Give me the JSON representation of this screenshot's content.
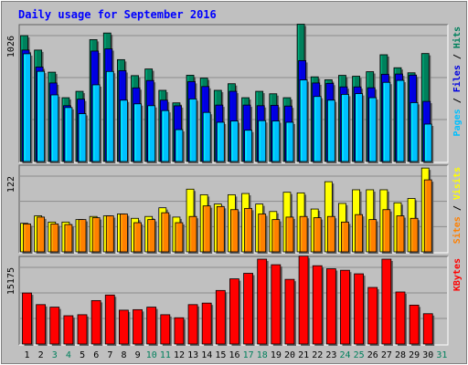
{
  "chart_data": {
    "type": "bar",
    "title": "Daily usage for September 2016",
    "days": [
      "1",
      "2",
      "3",
      "4",
      "5",
      "6",
      "7",
      "8",
      "9",
      "10",
      "11",
      "12",
      "13",
      "14",
      "15",
      "16",
      "17",
      "18",
      "19",
      "20",
      "21",
      "22",
      "23",
      "24",
      "25",
      "26",
      "27",
      "28",
      "29",
      "30",
      "31"
    ],
    "weekend_days": [
      "3",
      "4",
      "10",
      "11",
      "17",
      "18",
      "24",
      "25",
      "31"
    ],
    "panels": [
      {
        "name": "pages-files-hits",
        "tick_label": "1026",
        "ymax": 1026,
        "right_labels": [
          {
            "text": "Pages",
            "color": "#00c0ff"
          },
          {
            "text": " / ",
            "color": "#000000"
          },
          {
            "text": "Files",
            "color": "#0000e0"
          },
          {
            "text": " / ",
            "color": "#000000"
          },
          {
            "text": "Hits",
            "color": "#00805c"
          }
        ],
        "series": [
          {
            "name": "Hits",
            "color": "#00805c",
            "values": [
              1026,
              908,
              728,
              520,
              572,
              993,
              1047,
              830,
              700,
              754,
              580,
              478,
              703,
              680,
              580,
              634,
              520,
              572,
              552,
              520,
              1119,
              690,
              666,
              702,
              695,
              732,
              870,
              764,
              723,
              880,
              null
            ]
          },
          {
            "name": "Files",
            "color": "#0000e0",
            "values": [
              908,
              770,
              640,
              455,
              508,
              900,
              918,
              740,
              600,
              660,
              500,
              454,
              651,
              611,
              460,
              572,
              460,
              455,
              458,
              452,
              822,
              640,
              637,
              608,
              608,
              601,
              711,
              713,
              704,
              490,
              null
            ]
          },
          {
            "name": "Pages",
            "color": "#00c0ff",
            "values": [
              878,
              735,
              543,
              440,
              390,
              625,
              734,
              500,
              470,
              455,
              415,
              260,
              510,
              400,
              320,
              330,
              255,
              333,
              330,
              320,
              665,
              530,
              500,
              547,
              553,
              520,
              645,
              661,
              480,
              305,
              null
            ]
          }
        ]
      },
      {
        "name": "visits-sites",
        "tick_label": "122",
        "ymax": 122,
        "right_labels": [
          {
            "text": "Sites",
            "color": "#ff8000"
          },
          {
            "text": " / ",
            "color": "#000000"
          },
          {
            "text": "Visits",
            "color": "#ffff00"
          }
        ],
        "series": [
          {
            "name": "Visits",
            "color": "#ffff00",
            "values": [
              46,
              58,
              48,
              48,
              52,
              57,
              58,
              61,
              54,
              57,
              71,
              56,
              101,
              92,
              77,
              92,
              94,
              77,
              65,
              96,
              95,
              69,
              113,
              78,
              100,
              100,
              100,
              79,
              86,
              135,
              null
            ]
          },
          {
            "name": "Sites",
            "color": "#ff8000",
            "values": [
              45,
              56,
              45,
              44,
              52,
              55,
              58,
              61,
              47,
              52,
              63,
              47,
              57,
              74,
              73,
              68,
              70,
              61,
              52,
              56,
              57,
              55,
              57,
              48,
              60,
              52,
              68,
              58,
              54,
              116,
              null
            ]
          }
        ]
      },
      {
        "name": "kbytes",
        "tick_label": "15175",
        "ymax": 15175,
        "right_labels": [
          {
            "text": "KBytes",
            "color": "#ff0000"
          }
        ],
        "series": [
          {
            "name": "KBytes",
            "color": "#ff0000",
            "values": [
              10100,
              7800,
              7300,
              5600,
              5800,
              8600,
              9700,
              6700,
              6800,
              7300,
              5800,
              5200,
              7800,
              8100,
              10600,
              12900,
              14000,
              16800,
              15700,
              12800,
              17400,
              15500,
              14900,
              14600,
              13900,
              11200,
              16800,
              10300,
              7700,
              6000,
              null
            ]
          }
        ]
      }
    ]
  }
}
